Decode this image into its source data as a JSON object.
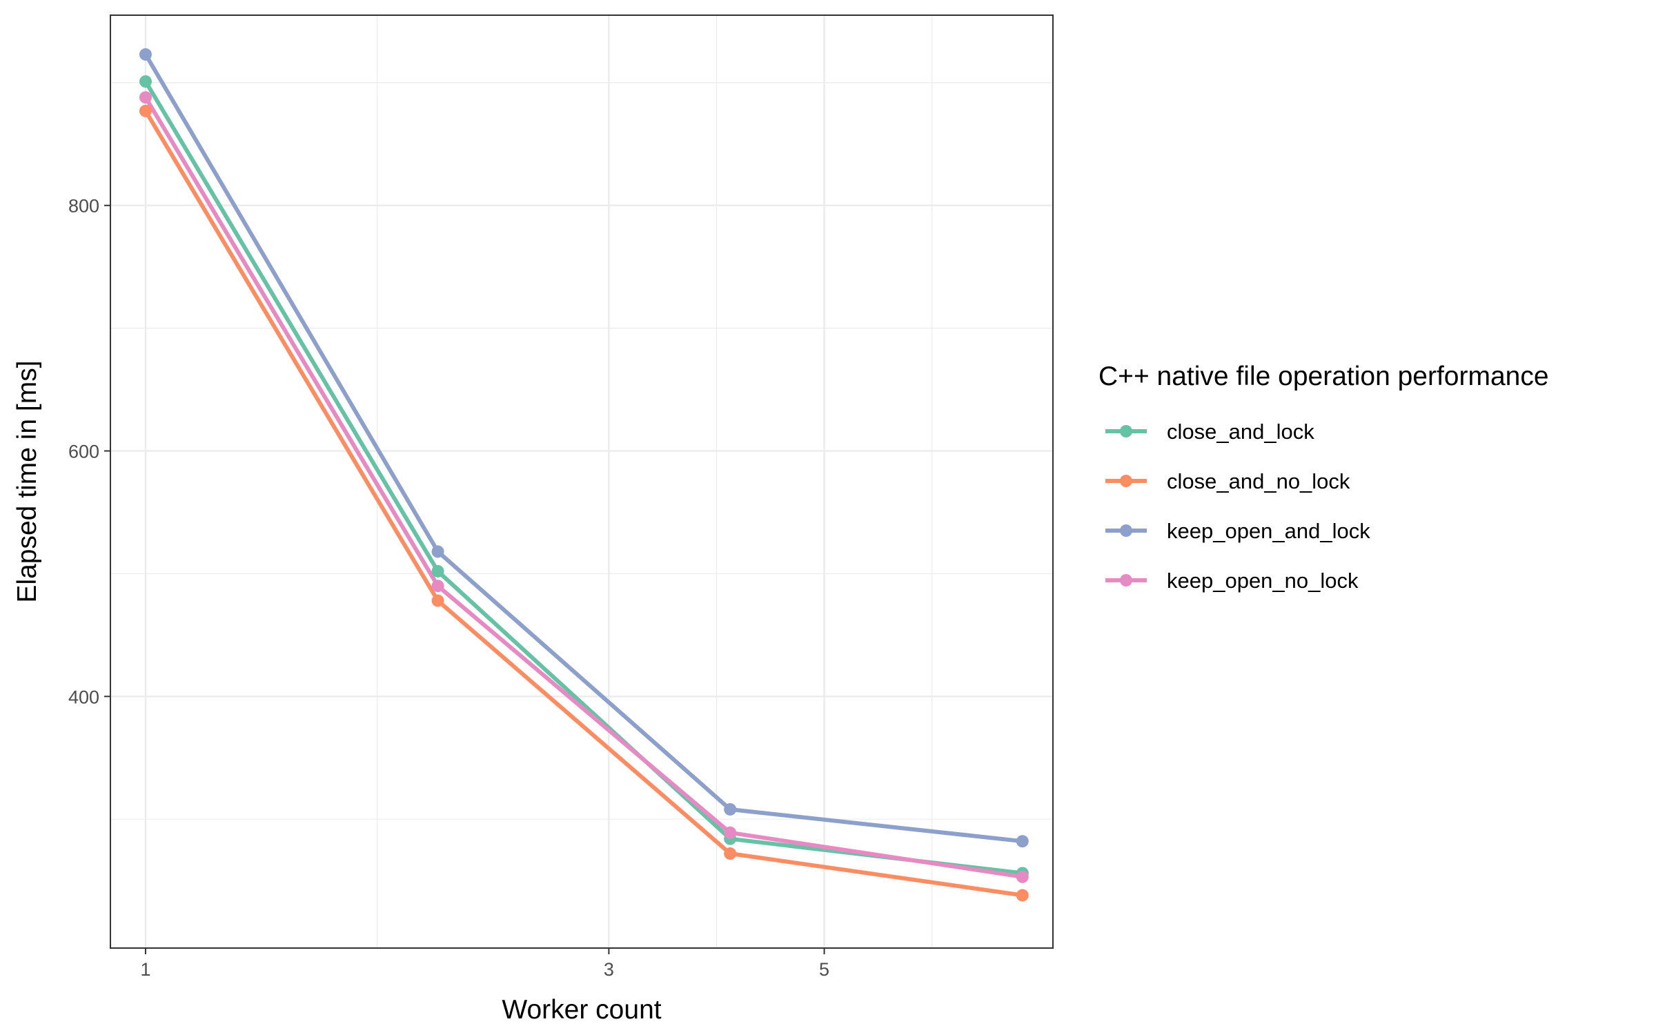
{
  "chart_data": {
    "type": "line",
    "title": "",
    "xlabel": "Worker count",
    "ylabel": "Elapsed time in [ms]",
    "x_scale": "log",
    "xlim": [
      0.92,
      8.6
    ],
    "ylim": [
      195,
      955
    ],
    "x_ticks": [
      1,
      3,
      5
    ],
    "y_ticks": [
      400,
      600,
      800
    ],
    "grid": true,
    "legend_title": "C++ native file operation performance",
    "legend_position": "right",
    "x": [
      1,
      2,
      4,
      8
    ],
    "series": [
      {
        "name": "close_and_lock",
        "color": "#66c2a5",
        "values": [
          901,
          502,
          284,
          256
        ]
      },
      {
        "name": "close_and_no_lock",
        "color": "#fc8d62",
        "values": [
          877,
          478,
          272,
          238
        ]
      },
      {
        "name": "keep_open_and_lock",
        "color": "#8da0cb",
        "values": [
          923,
          518,
          308,
          282
        ]
      },
      {
        "name": "keep_open_no_lock",
        "color": "#e78ac3",
        "values": [
          888,
          490,
          289,
          253
        ]
      }
    ]
  }
}
